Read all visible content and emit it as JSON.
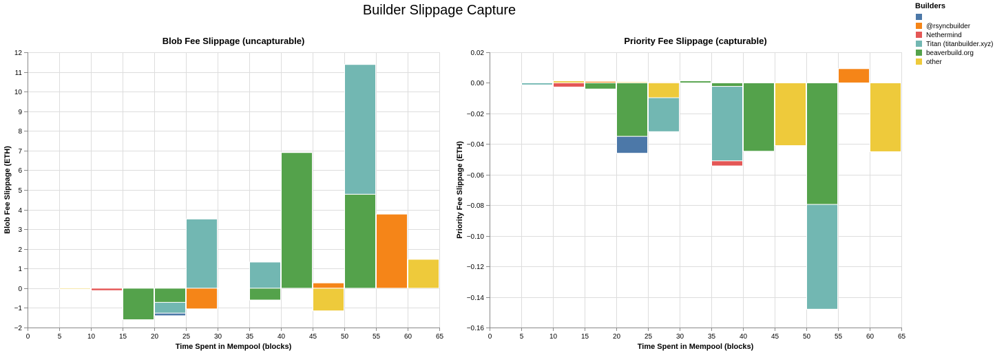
{
  "page_title": "Builder Slippage Capture",
  "legend": {
    "title": "Builders",
    "items": [
      {
        "label": "",
        "color": "#4c78a8"
      },
      {
        "label": "@rsyncbuilder",
        "color": "#f58518"
      },
      {
        "label": "Nethermind",
        "color": "#e45756"
      },
      {
        "label": "Titan (titanbuilder.xyz)",
        "color": "#72b7b2"
      },
      {
        "label": "beaverbuild.org",
        "color": "#54a24b"
      },
      {
        "label": "other",
        "color": "#eeca3b"
      }
    ]
  },
  "chart_data": [
    {
      "type": "bar",
      "stacked": true,
      "title": "Blob Fee Slippage (uncapturable)",
      "xlabel": "Time Spent in Mempool (blocks)",
      "ylabel": "Blob Fee Slippage (ETH)",
      "xlim": [
        0,
        65
      ],
      "ylim": [
        -2,
        12
      ],
      "x_ticks": [
        0,
        5,
        10,
        15,
        20,
        25,
        30,
        35,
        40,
        45,
        50,
        55,
        60,
        65
      ],
      "y_ticks": [
        -2,
        -1,
        0,
        1,
        2,
        3,
        4,
        5,
        6,
        7,
        8,
        9,
        10,
        11,
        12
      ],
      "grid": true,
      "bin_width": 5,
      "segments": [
        {
          "bin": 5,
          "builder": "other",
          "value": -0.05
        },
        {
          "bin": 10,
          "builder": "Nethermind",
          "value": -0.12
        },
        {
          "bin": 15,
          "builder": "beaverbuild.org",
          "value": -1.6
        },
        {
          "bin": 20,
          "builder": "beaverbuild.org",
          "value": -0.72
        },
        {
          "bin": 20,
          "builder": "Titan (titanbuilder.xyz)",
          "value": -0.55
        },
        {
          "bin": 20,
          "builder": "",
          "value": -0.13
        },
        {
          "bin": 25,
          "builder": "Titan (titanbuilder.xyz)",
          "value": 3.52
        },
        {
          "bin": 25,
          "builder": "@rsyncbuilder",
          "value": -1.05
        },
        {
          "bin": 30,
          "builder": "beaverbuild.org",
          "value": -0.03
        },
        {
          "bin": 35,
          "builder": "Titan (titanbuilder.xyz)",
          "value": 1.33
        },
        {
          "bin": 35,
          "builder": "beaverbuild.org",
          "value": -0.6
        },
        {
          "bin": 40,
          "builder": "beaverbuild.org",
          "value": 6.9
        },
        {
          "bin": 45,
          "builder": "@rsyncbuilder",
          "value": 0.27
        },
        {
          "bin": 45,
          "builder": "other",
          "value": -1.15
        },
        {
          "bin": 50,
          "builder": "beaverbuild.org",
          "value": 4.78
        },
        {
          "bin": 50,
          "builder": "Titan (titanbuilder.xyz)",
          "value": 6.6
        },
        {
          "bin": 55,
          "builder": "@rsyncbuilder",
          "value": 3.77
        },
        {
          "bin": 60,
          "builder": "other",
          "value": 1.47
        }
      ]
    },
    {
      "type": "bar",
      "stacked": true,
      "title": "Priority Fee Slippage (capturable)",
      "xlabel": "Time Spent in Mempool (blocks)",
      "ylabel": "Priority Fee Slippage (ETH)",
      "xlim": [
        0,
        65
      ],
      "ylim": [
        -0.16,
        0.02
      ],
      "x_ticks": [
        0,
        5,
        10,
        15,
        20,
        25,
        30,
        35,
        40,
        45,
        50,
        55,
        60,
        65
      ],
      "y_ticks": [
        -0.16,
        -0.14,
        -0.12,
        -0.1,
        -0.08,
        -0.06,
        -0.04,
        -0.02,
        0.0,
        0.02
      ],
      "grid": true,
      "bin_width": 5,
      "segments": [
        {
          "bin": 0,
          "builder": "other",
          "value": -0.0003
        },
        {
          "bin": 5,
          "builder": "Titan (titanbuilder.xyz)",
          "value": -0.0013
        },
        {
          "bin": 10,
          "builder": "other",
          "value": 0.0013
        },
        {
          "bin": 10,
          "builder": "Nethermind",
          "value": -0.0027
        },
        {
          "bin": 15,
          "builder": "@rsyncbuilder",
          "value": 0.001
        },
        {
          "bin": 15,
          "builder": "beaverbuild.org",
          "value": -0.004
        },
        {
          "bin": 20,
          "builder": "other",
          "value": 0.0007
        },
        {
          "bin": 20,
          "builder": "beaverbuild.org",
          "value": -0.035
        },
        {
          "bin": 20,
          "builder": "",
          "value": -0.011
        },
        {
          "bin": 25,
          "builder": "@rsyncbuilder",
          "value": 0.0005
        },
        {
          "bin": 25,
          "builder": "other",
          "value": -0.0097
        },
        {
          "bin": 25,
          "builder": "Titan (titanbuilder.xyz)",
          "value": -0.0222
        },
        {
          "bin": 30,
          "builder": "beaverbuild.org",
          "value": 0.0013
        },
        {
          "bin": 35,
          "builder": "beaverbuild.org",
          "value": -0.0023
        },
        {
          "bin": 35,
          "builder": "Titan (titanbuilder.xyz)",
          "value": -0.0487
        },
        {
          "bin": 35,
          "builder": "Nethermind",
          "value": -0.0033
        },
        {
          "bin": 40,
          "builder": "beaverbuild.org",
          "value": -0.0447
        },
        {
          "bin": 45,
          "builder": "other",
          "value": -0.041
        },
        {
          "bin": 50,
          "builder": "beaverbuild.org",
          "value": -0.0795
        },
        {
          "bin": 50,
          "builder": "Titan (titanbuilder.xyz)",
          "value": -0.0685
        },
        {
          "bin": 55,
          "builder": "@rsyncbuilder",
          "value": 0.0093
        },
        {
          "bin": 60,
          "builder": "other",
          "value": -0.045
        }
      ]
    }
  ]
}
